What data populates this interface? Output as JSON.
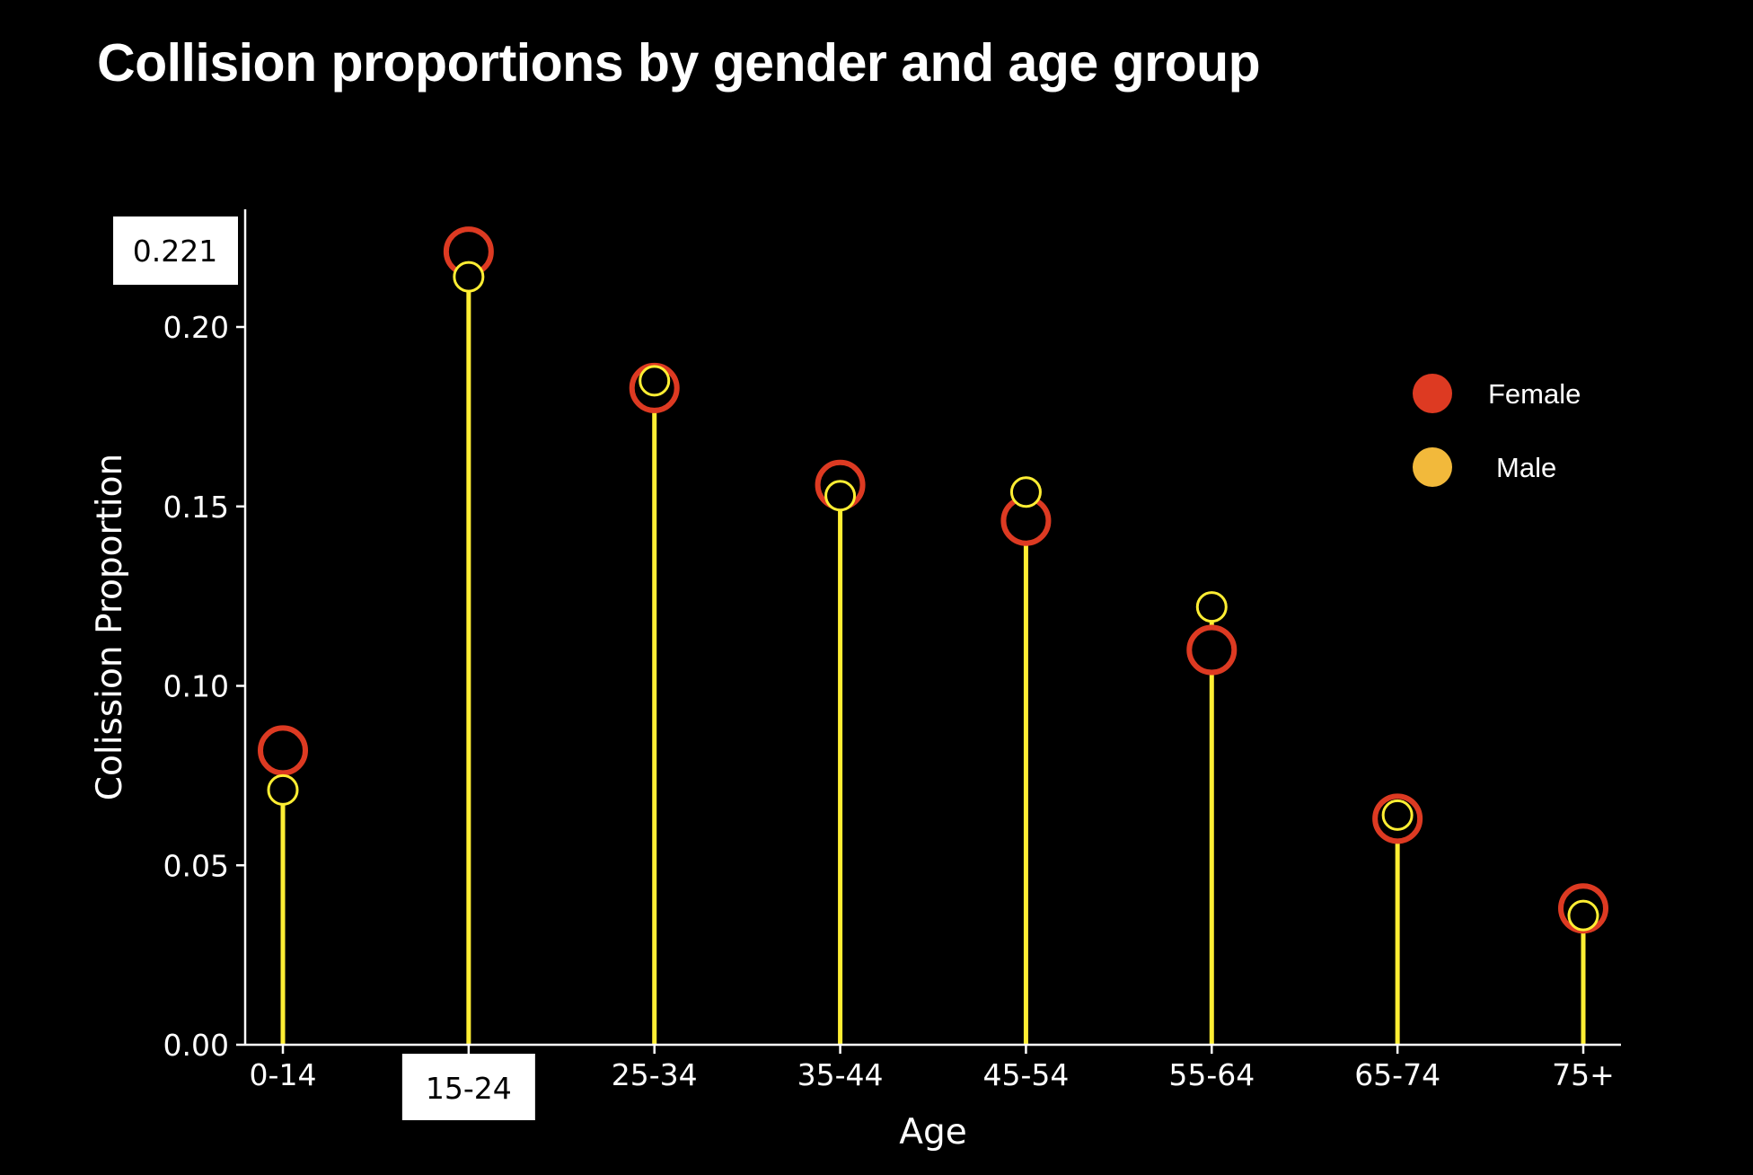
{
  "title": "Collision proportions by gender and age group",
  "chart_data": {
    "type": "lollipop",
    "title": "Collision proportions by gender and age group",
    "xlabel": "Age",
    "ylabel": "Colission Proportion",
    "categories": [
      "0-14",
      "15-24",
      "25-34",
      "35-44",
      "45-54",
      "55-64",
      "65-74",
      "75+"
    ],
    "y_ticks": [
      "0.00",
      "0.05",
      "0.10",
      "0.15",
      "0.20"
    ],
    "y_tick_values": [
      0,
      0.05,
      0.1,
      0.15,
      0.2
    ],
    "ylim": [
      0,
      0.23
    ],
    "grid": false,
    "legend_position": "top-right",
    "series": [
      {
        "name": "Female",
        "color": "#dd3a22",
        "legend_color": "#dd3a22",
        "values": [
          0.082,
          0.221,
          0.183,
          0.156,
          0.146,
          0.11,
          0.063,
          0.038
        ]
      },
      {
        "name": "Male",
        "color": "#ffee33",
        "legend_color": "#f2b93b",
        "values": [
          0.071,
          0.214,
          0.185,
          0.153,
          0.154,
          0.122,
          0.064,
          0.036
        ]
      }
    ],
    "stem_color": "#ffee33",
    "highlight": {
      "category_label": "15-24",
      "value_label": "0.221"
    }
  }
}
